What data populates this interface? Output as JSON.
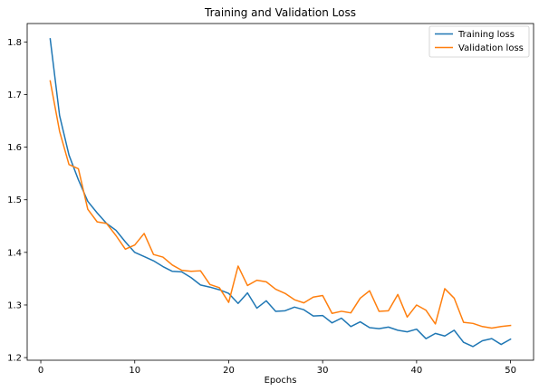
{
  "chart_data": {
    "type": "line",
    "title": "Training and Validation Loss",
    "xlabel": "Epochs",
    "ylabel": "",
    "xlim": [
      -1.45,
      52.45
    ],
    "ylim": [
      1.195,
      1.835
    ],
    "xticks": [
      0,
      10,
      20,
      30,
      40,
      50
    ],
    "yticks": [
      1.2,
      1.3,
      1.4,
      1.5,
      1.6,
      1.7,
      1.8
    ],
    "grid": false,
    "legend_position": "top-right",
    "x": [
      1,
      2,
      3,
      4,
      5,
      6,
      7,
      8,
      9,
      10,
      11,
      12,
      13,
      14,
      15,
      16,
      17,
      18,
      19,
      20,
      21,
      22,
      23,
      24,
      25,
      26,
      27,
      28,
      29,
      30,
      31,
      32,
      33,
      34,
      35,
      36,
      37,
      38,
      39,
      40,
      41,
      42,
      43,
      44,
      45,
      46,
      47,
      48,
      49,
      50
    ],
    "series": [
      {
        "name": "Training loss",
        "color": "#1f77b4",
        "values": [
          1.806,
          1.66,
          1.585,
          1.538,
          1.497,
          1.475,
          1.455,
          1.442,
          1.42,
          1.4,
          1.392,
          1.384,
          1.373,
          1.364,
          1.363,
          1.352,
          1.338,
          1.334,
          1.329,
          1.322,
          1.303,
          1.323,
          1.294,
          1.308,
          1.288,
          1.289,
          1.296,
          1.291,
          1.279,
          1.28,
          1.266,
          1.275,
          1.259,
          1.268,
          1.257,
          1.255,
          1.258,
          1.252,
          1.249,
          1.254,
          1.236,
          1.246,
          1.241,
          1.252,
          1.229,
          1.221,
          1.232,
          1.236,
          1.225,
          1.235
        ]
      },
      {
        "name": "Validation loss",
        "color": "#ff7f0e",
        "values": [
          1.726,
          1.63,
          1.567,
          1.559,
          1.482,
          1.458,
          1.455,
          1.432,
          1.406,
          1.414,
          1.436,
          1.396,
          1.391,
          1.376,
          1.366,
          1.364,
          1.365,
          1.339,
          1.333,
          1.305,
          1.374,
          1.337,
          1.347,
          1.344,
          1.33,
          1.322,
          1.31,
          1.304,
          1.315,
          1.318,
          1.284,
          1.288,
          1.285,
          1.313,
          1.327,
          1.288,
          1.289,
          1.32,
          1.277,
          1.3,
          1.29,
          1.264,
          1.331,
          1.313,
          1.267,
          1.265,
          1.259,
          1.256,
          1.259,
          1.261
        ]
      }
    ]
  }
}
